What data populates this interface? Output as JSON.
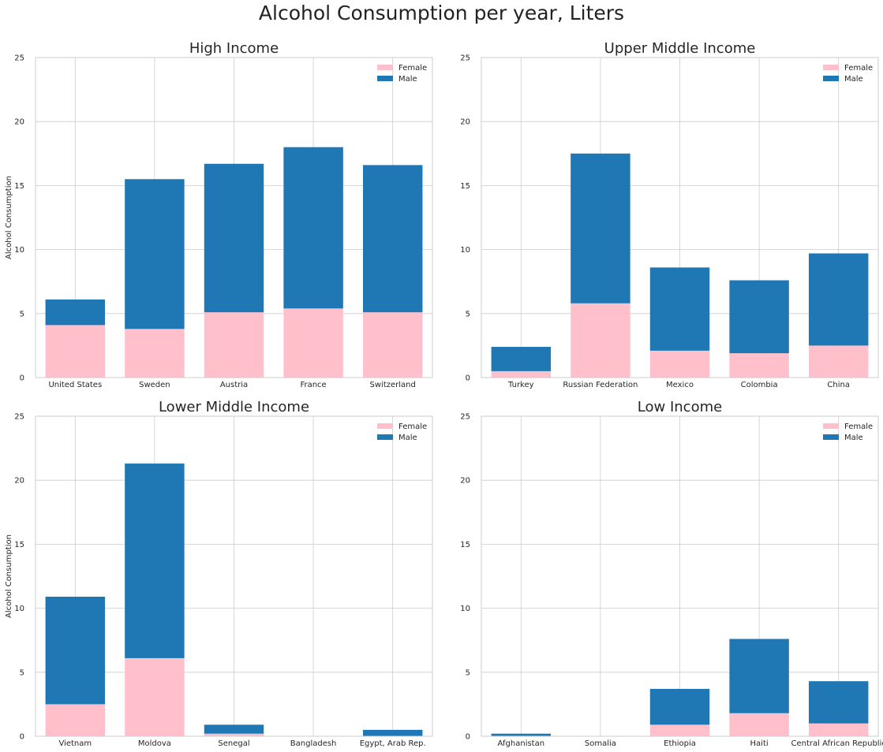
{
  "title": "Alcohol Consumption per year, Liters",
  "colors": {
    "female": "#ffc0cb",
    "male": "#1f77b4",
    "grid": "#cccccc",
    "axes_border": "#cccccc"
  },
  "chart_data": [
    {
      "type": "bar",
      "stacked": true,
      "title": "High Income",
      "ylabel": "Alcohol Consumption",
      "ylim": [
        0,
        25
      ],
      "yticks": [
        0,
        5,
        10,
        15,
        20,
        25
      ],
      "grid": true,
      "legend": "top-right",
      "categories": [
        "United States",
        "Sweden",
        "Austria",
        "France",
        "Switzerland"
      ],
      "series": [
        {
          "name": "Female",
          "values": [
            4.1,
            3.8,
            5.1,
            5.4,
            5.1
          ]
        },
        {
          "name": "Male",
          "values": [
            2.0,
            11.7,
            11.6,
            12.6,
            11.5
          ]
        }
      ]
    },
    {
      "type": "bar",
      "stacked": true,
      "title": "Upper Middle Income",
      "ylabel": "",
      "ylim": [
        0,
        25
      ],
      "yticks": [
        0,
        5,
        10,
        15,
        20,
        25
      ],
      "grid": true,
      "legend": "top-right",
      "categories": [
        "Turkey",
        "Russian Federation",
        "Mexico",
        "Colombia",
        "China"
      ],
      "series": [
        {
          "name": "Female",
          "values": [
            0.5,
            5.8,
            2.1,
            1.9,
            2.5
          ]
        },
        {
          "name": "Male",
          "values": [
            1.9,
            11.7,
            6.5,
            5.7,
            7.2
          ]
        }
      ]
    },
    {
      "type": "bar",
      "stacked": true,
      "title": "Lower Middle Income",
      "ylabel": "Alcohol Consumption",
      "ylim": [
        0,
        25
      ],
      "yticks": [
        0,
        5,
        10,
        15,
        20,
        25
      ],
      "grid": true,
      "legend": "top-right",
      "categories": [
        "Vietnam",
        "Moldova",
        "Senegal",
        "Bangladesh",
        "Egypt, Arab Rep."
      ],
      "series": [
        {
          "name": "Female",
          "values": [
            2.5,
            6.1,
            0.2,
            0.0,
            0.0
          ]
        },
        {
          "name": "Male",
          "values": [
            8.4,
            15.2,
            0.7,
            0.0,
            0.5
          ]
        }
      ]
    },
    {
      "type": "bar",
      "stacked": true,
      "title": "Low Income",
      "ylabel": "",
      "ylim": [
        0,
        25
      ],
      "yticks": [
        0,
        5,
        10,
        15,
        20,
        25
      ],
      "grid": true,
      "legend": "top-right",
      "categories": [
        "Afghanistan",
        "Somalia",
        "Ethiopia",
        "Haiti",
        "Central African Republic"
      ],
      "series": [
        {
          "name": "Female",
          "values": [
            0.0,
            0.0,
            0.9,
            1.8,
            1.0
          ]
        },
        {
          "name": "Male",
          "values": [
            0.2,
            0.0,
            2.8,
            5.8,
            3.3
          ]
        }
      ]
    }
  ]
}
